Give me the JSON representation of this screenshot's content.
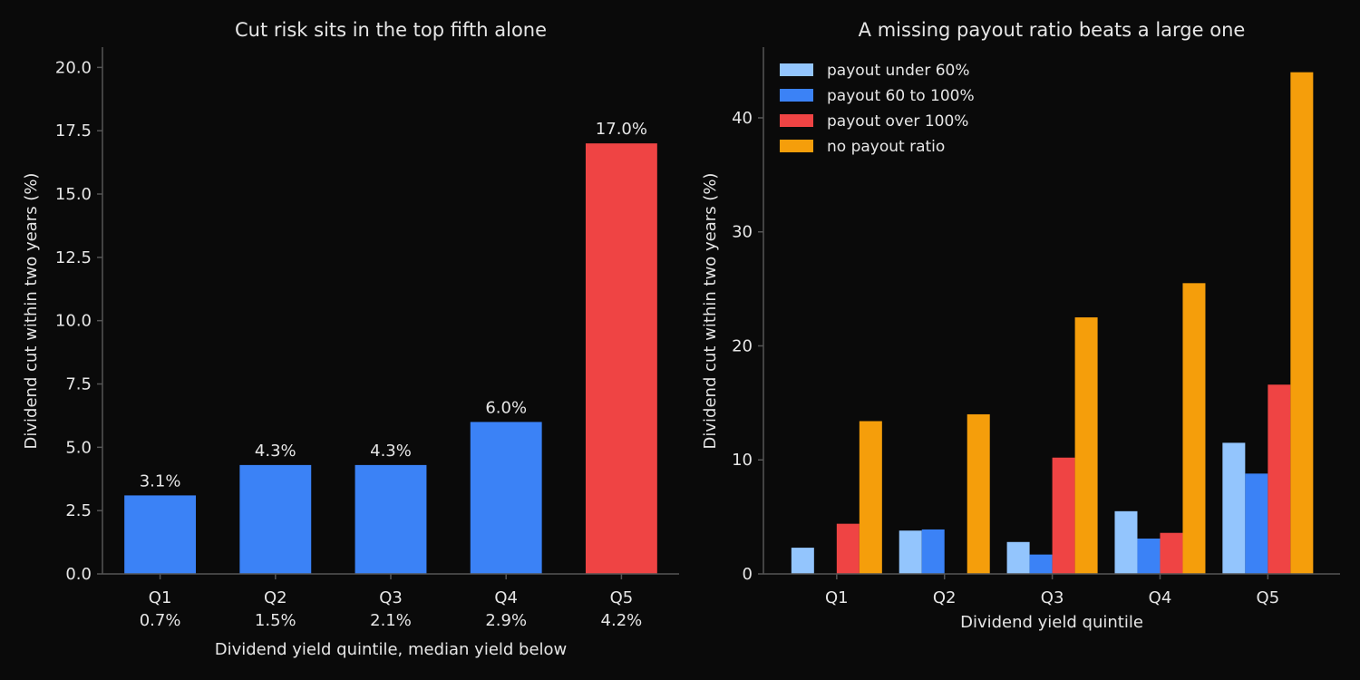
{
  "colors": {
    "background": "#0a0a0a",
    "text": "#e6e6e6",
    "axis": "#555555",
    "highlight": "#ef4444",
    "primary": "#3b82f6"
  },
  "chart_data": [
    {
      "type": "bar",
      "title": "Cut risk sits in the top fifth alone",
      "xlabel": "Dividend yield quintile, median yield below",
      "ylabel": "Dividend cut within two years (%)",
      "categories": [
        "Q1",
        "Q2",
        "Q3",
        "Q4",
        "Q5"
      ],
      "category_sublabels": [
        "0.7%",
        "1.5%",
        "2.1%",
        "2.9%",
        "4.2%"
      ],
      "values": [
        3.1,
        4.3,
        4.3,
        6.0,
        17.0
      ],
      "data_labels": [
        "3.1%",
        "4.3%",
        "4.3%",
        "6.0%",
        "17.0%"
      ],
      "bar_colors": [
        "#3b82f6",
        "#3b82f6",
        "#3b82f6",
        "#3b82f6",
        "#ef4444"
      ],
      "ylim": [
        0,
        20.8
      ],
      "yticks": [
        0,
        2.5,
        5,
        7.5,
        10,
        12.5,
        15,
        17.5,
        20
      ],
      "ytick_labels": [
        "0.0",
        "2.5",
        "5.0",
        "7.5",
        "10.0",
        "12.5",
        "15.0",
        "17.5",
        "20.0"
      ],
      "grid": false
    },
    {
      "type": "bar",
      "title": "A missing payout ratio beats a large one",
      "xlabel": "Dividend yield quintile",
      "ylabel": "Dividend cut within two years (%)",
      "categories": [
        "Q1",
        "Q2",
        "Q3",
        "Q4",
        "Q5"
      ],
      "series": [
        {
          "name": "payout under 60%",
          "color": "#93c5fd",
          "values": [
            2.3,
            3.8,
            2.8,
            5.5,
            11.5
          ]
        },
        {
          "name": "payout 60 to 100%",
          "color": "#3b82f6",
          "values": [
            0,
            3.9,
            1.7,
            3.1,
            8.8
          ]
        },
        {
          "name": "payout over 100%",
          "color": "#ef4444",
          "values": [
            4.4,
            0,
            10.2,
            3.6,
            16.6
          ]
        },
        {
          "name": "no payout ratio",
          "color": "#f59e0b",
          "values": [
            13.4,
            14.0,
            22.5,
            25.5,
            44.0
          ]
        }
      ],
      "ylim": [
        0,
        46.2
      ],
      "yticks": [
        0,
        10,
        20,
        30,
        40
      ],
      "ytick_labels": [
        "0",
        "10",
        "20",
        "30",
        "40"
      ],
      "legend": "top-left",
      "grid": false
    }
  ]
}
